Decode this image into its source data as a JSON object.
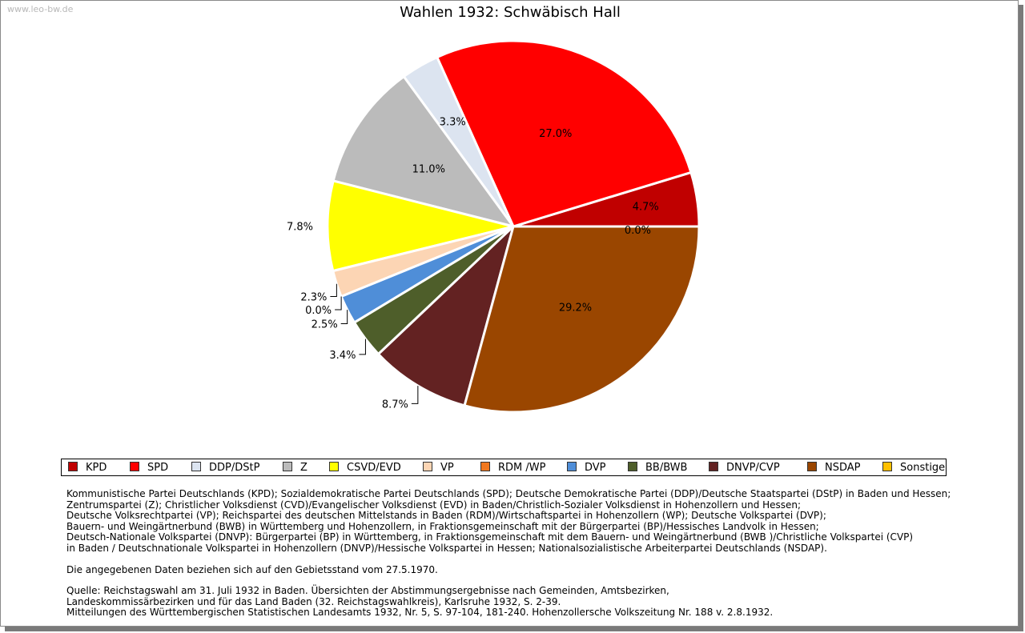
{
  "watermark": "www.leo-bw.de",
  "chart_data": {
    "type": "pie",
    "title": "Wahlen 1932: Schwäbisch Hall",
    "slices": [
      {
        "name": "KPD",
        "value": 4.7,
        "label": "4.7%",
        "color": "#c00000"
      },
      {
        "name": "SPD",
        "value": 27.0,
        "label": "27.0%",
        "color": "#ff0000"
      },
      {
        "name": "DDP/DStP",
        "value": 3.3,
        "label": "3.3%",
        "color": "#dce4f0"
      },
      {
        "name": "Z",
        "value": 11.0,
        "label": "11.0%",
        "color": "#bbbbbb"
      },
      {
        "name": "CSVD/EVD",
        "value": 7.8,
        "label": "7.8%",
        "color": "#ffff00"
      },
      {
        "name": "VP",
        "value": 2.3,
        "label": "2.3%",
        "color": "#fcd5b4"
      },
      {
        "name": "RDM /WP",
        "value": 0.0,
        "label": "0.0%",
        "color": "#f07820"
      },
      {
        "name": "DVP",
        "value": 2.5,
        "label": "2.5%",
        "color": "#4f8ed8"
      },
      {
        "name": "BB/BWB",
        "value": 3.4,
        "label": "3.4%",
        "color": "#4e5e2a"
      },
      {
        "name": "DNVP/CVP",
        "value": 8.7,
        "label": "8.7%",
        "color": "#632222"
      },
      {
        "name": "NSDAP",
        "value": 29.2,
        "label": "29.2%",
        "color": "#9a4600"
      },
      {
        "name": "Sonstige",
        "value": 0.0,
        "label": "0.0%",
        "color": "#ffc000"
      }
    ],
    "legend_position": "bottom"
  },
  "notes": [
    "Kommunistische Partei Deutschlands (KPD); Sozialdemokratische Partei Deutschlands (SPD); Deutsche Demokratische Partei (DDP)/Deutsche Staatspartei (DStP) in Baden und Hessen;\nZentrumspartei (Z); Christlicher Volksdienst (CVD)/Evangelischer Volksdienst (EVD) in Baden/Christlich-Sozialer Volksdienst in Hohenzollern und Hessen;\nDeutsche Volksrechtpartei (VP); Reichspartei des deutschen Mittelstands in Baden (RDM)/Wirtschaftspartei in Hohenzollern (WP); Deutsche Volkspartei (DVP);\nBauern- und Weingärtnerbund (BWB) in Württemberg und Hohenzollern, in Fraktionsgemeinschaft mit der Bürgerpartei (BP)/Hessisches Landvolk in Hessen;\nDeutsch-Nationale Volkspartei (DNVP): Bürgerpartei (BP) in Württemberg, in Fraktionsgemeinschaft mit dem Bauern- und Weingärtnerbund (BWB )/Christliche Volkspartei (CVP)\nin Baden / Deutschnationale Volkspartei in Hohenzollern (DNVP)/Hessische Volkspartei in Hessen; Nationalsozialistische Arbeiterpartei Deutschlands (NSDAP).",
    "Die angegebenen Daten beziehen sich auf den Gebietsstand vom 27.5.1970.",
    "Quelle: Reichstagswahl am 31. Juli 1932 in Baden. Übersichten der Abstimmungsergebnisse nach Gemeinden, Amtsbezirken,\nLandeskommissärbezirken und für das Land Baden (32. Reichstagswahlkreis), Karlsruhe 1932, S. 2-39.\nMitteilungen des Württembergischen Statistischen Landesamts 1932, Nr. 5, S. 97-104, 181-240. Hohenzollersche Volkszeitung Nr. 188 v. 2.8.1932."
  ]
}
